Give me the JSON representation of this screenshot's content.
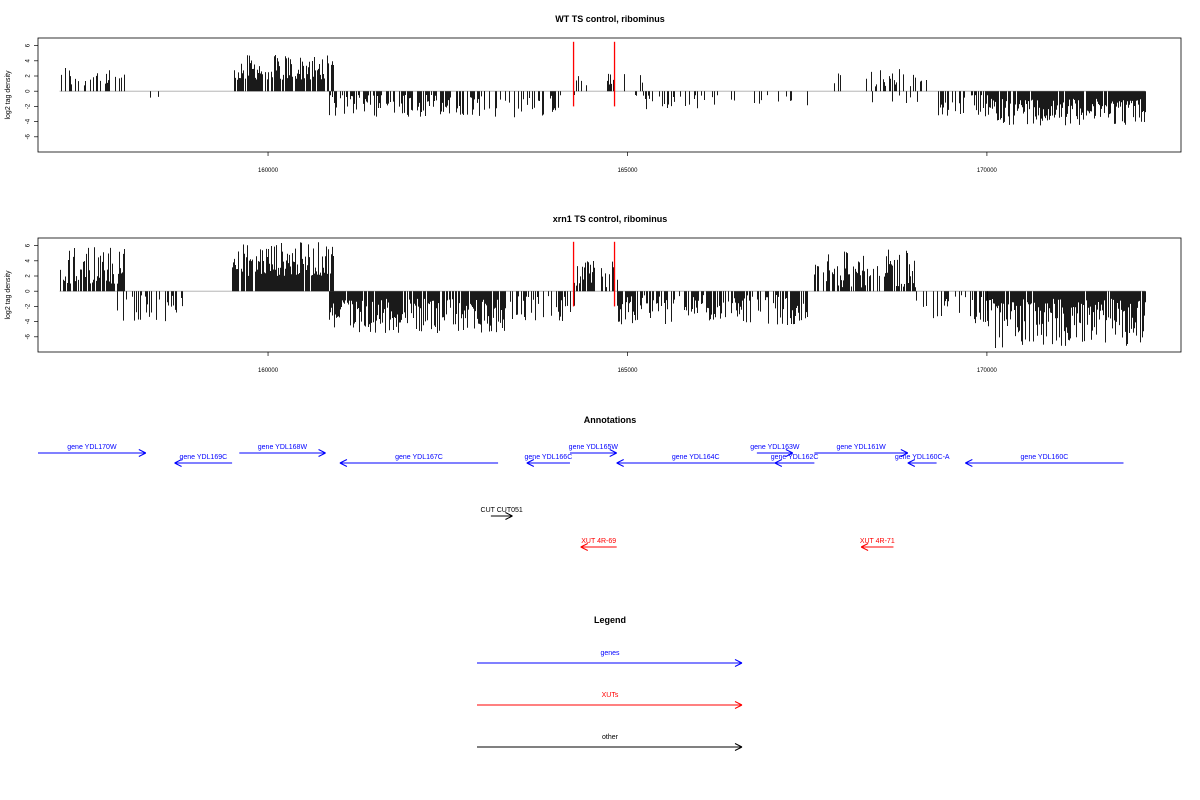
{
  "colors": {
    "genes": "#0000ff",
    "xuts": "#ff0000",
    "other": "#000000",
    "signal": "#000000",
    "marker": "#ff0000"
  },
  "chart_data": [
    {
      "type": "bar",
      "title": "WT TS control, ribominus",
      "xlabel": "",
      "ylabel": "log2 tag density",
      "xlim": [
        156800,
        172700
      ],
      "ylim": [
        -8,
        7
      ],
      "x_ticks": [
        160000,
        165000,
        170000
      ],
      "y_ticks": [
        6,
        4,
        2,
        0,
        -2,
        -4,
        -6
      ],
      "red_markers_x": [
        164250,
        164820
      ],
      "segments": [
        {
          "x0": 157100,
          "x1": 158000,
          "sign": 1,
          "min": 0.5,
          "max": 3.5,
          "density": 0.35
        },
        {
          "x0": 158000,
          "x1": 158800,
          "sign": -1,
          "min": 0.5,
          "max": 2.0,
          "density": 0.05
        },
        {
          "x0": 159500,
          "x1": 160900,
          "sign": 1,
          "min": 1.5,
          "max": 4.8,
          "density": 0.8
        },
        {
          "x0": 160850,
          "x1": 163000,
          "sign": -1,
          "min": 0.5,
          "max": 3.5,
          "density": 0.55
        },
        {
          "x0": 163000,
          "x1": 164250,
          "sign": -1,
          "min": 0.5,
          "max": 3.5,
          "density": 0.4
        },
        {
          "x0": 164250,
          "x1": 164800,
          "sign": 1,
          "min": 0.5,
          "max": 2.5,
          "density": 0.12
        },
        {
          "x0": 164850,
          "x1": 165250,
          "sign": 1,
          "min": 1.0,
          "max": 3.5,
          "density": 0.04
        },
        {
          "x0": 165100,
          "x1": 166000,
          "sign": -1,
          "min": 0.5,
          "max": 3.0,
          "density": 0.3
        },
        {
          "x0": 166000,
          "x1": 167600,
          "sign": -1,
          "min": 0.5,
          "max": 2.0,
          "density": 0.12
        },
        {
          "x0": 167700,
          "x1": 168000,
          "sign": 1,
          "min": 0.5,
          "max": 2.5,
          "density": 0.15
        },
        {
          "x0": 168300,
          "x1": 169200,
          "sign": 1,
          "min": 0.5,
          "max": 3.0,
          "density": 0.35
        },
        {
          "x0": 168300,
          "x1": 169200,
          "sign": -1,
          "min": 0.5,
          "max": 2.5,
          "density": 0.08
        },
        {
          "x0": 169300,
          "x1": 170000,
          "sign": -1,
          "min": 0.5,
          "max": 3.5,
          "density": 0.35
        },
        {
          "x0": 170000,
          "x1": 172200,
          "sign": -1,
          "min": 1.0,
          "max": 4.5,
          "density": 0.9
        }
      ]
    },
    {
      "type": "bar",
      "title": "xrn1 TS control, ribominus",
      "xlabel": "",
      "ylabel": "log2 tag density",
      "xlim": [
        156800,
        172700
      ],
      "ylim": [
        -8,
        7
      ],
      "x_ticks": [
        160000,
        165000,
        170000
      ],
      "y_ticks": [
        6,
        4,
        2,
        0,
        -2,
        -4,
        -6
      ],
      "red_markers_x": [
        164250,
        164820
      ],
      "segments": [
        {
          "x0": 157100,
          "x1": 158000,
          "sign": 1,
          "min": 1.0,
          "max": 6.0,
          "density": 0.8
        },
        {
          "x0": 157900,
          "x1": 158800,
          "sign": -1,
          "min": 0.5,
          "max": 4.0,
          "density": 0.35
        },
        {
          "x0": 159500,
          "x1": 160900,
          "sign": 1,
          "min": 2.0,
          "max": 6.5,
          "density": 0.9
        },
        {
          "x0": 160850,
          "x1": 163300,
          "sign": -1,
          "min": 1.0,
          "max": 5.5,
          "density": 0.85
        },
        {
          "x0": 163300,
          "x1": 164250,
          "sign": -1,
          "min": 0.5,
          "max": 4.0,
          "density": 0.45
        },
        {
          "x0": 164250,
          "x1": 164850,
          "sign": 1,
          "min": 0.5,
          "max": 4.0,
          "density": 0.6
        },
        {
          "x0": 164850,
          "x1": 167500,
          "sign": -1,
          "min": 0.5,
          "max": 4.5,
          "density": 0.7
        },
        {
          "x0": 167600,
          "x1": 169000,
          "sign": 1,
          "min": 0.5,
          "max": 5.5,
          "density": 0.6
        },
        {
          "x0": 169000,
          "x1": 170000,
          "sign": -1,
          "min": 0.5,
          "max": 4.5,
          "density": 0.4
        },
        {
          "x0": 170000,
          "x1": 172200,
          "sign": -1,
          "min": 1.0,
          "max": 7.5,
          "density": 0.95
        }
      ]
    }
  ],
  "annotations": {
    "title": "Annotations",
    "features": [
      {
        "label": "gene YDL170W",
        "kind": "genes",
        "strand": "+",
        "start": 156800,
        "end": 158300,
        "row": 0
      },
      {
        "label": "gene YDL169C",
        "kind": "genes",
        "strand": "-",
        "start": 158700,
        "end": 159500,
        "row": 1
      },
      {
        "label": "gene YDL168W",
        "kind": "genes",
        "strand": "+",
        "start": 159600,
        "end": 160800,
        "row": 0
      },
      {
        "label": "gene YDL167C",
        "kind": "genes",
        "strand": "-",
        "start": 161000,
        "end": 163200,
        "row": 1
      },
      {
        "label": "gene YDL166C",
        "kind": "genes",
        "strand": "-",
        "start": 163600,
        "end": 164200,
        "row": 1
      },
      {
        "label": "gene YDL165W",
        "kind": "genes",
        "strand": "+",
        "start": 164200,
        "end": 164850,
        "row": 0
      },
      {
        "label": "gene YDL164C",
        "kind": "genes",
        "strand": "-",
        "start": 164850,
        "end": 167050,
        "row": 1
      },
      {
        "label": "gene YDL163W",
        "kind": "genes",
        "strand": "+",
        "start": 166800,
        "end": 167300,
        "row": 0
      },
      {
        "label": "gene YDL162C",
        "kind": "genes",
        "strand": "-",
        "start": 167050,
        "end": 167600,
        "row": 1
      },
      {
        "label": "gene YDL161W",
        "kind": "genes",
        "strand": "+",
        "start": 167600,
        "end": 168900,
        "row": 0
      },
      {
        "label": "gene YDL160C-A",
        "kind": "genes",
        "strand": "-",
        "start": 168900,
        "end": 169300,
        "row": 1
      },
      {
        "label": "gene YDL160C",
        "kind": "genes",
        "strand": "-",
        "start": 169700,
        "end": 171900,
        "row": 1
      },
      {
        "label": "CUT CUT051",
        "kind": "other",
        "strand": "+",
        "start": 163100,
        "end": 163400,
        "row": 2
      },
      {
        "label": "XUT 4R-69",
        "kind": "xuts",
        "strand": "-",
        "start": 164350,
        "end": 164850,
        "row": 3
      },
      {
        "label": "XUT 4R-71",
        "kind": "xuts",
        "strand": "-",
        "start": 168250,
        "end": 168700,
        "row": 3
      }
    ]
  },
  "legend": {
    "title": "Legend",
    "entries": [
      {
        "label": "genes",
        "kind": "genes"
      },
      {
        "label": "XUTs",
        "kind": "xuts"
      },
      {
        "label": "other",
        "kind": "other"
      }
    ]
  }
}
